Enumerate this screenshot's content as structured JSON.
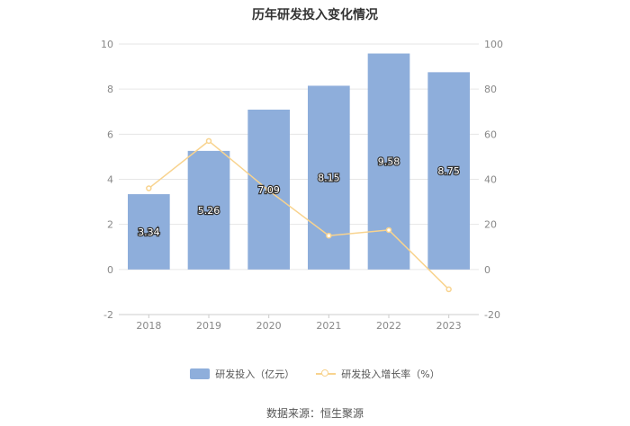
{
  "chart_data": {
    "type": "bar",
    "title": "历年研发投入变化情况",
    "categories": [
      "2018",
      "2019",
      "2020",
      "2021",
      "2022",
      "2023"
    ],
    "series": [
      {
        "name": "研发投入（亿元）",
        "type": "bar",
        "axis": "left",
        "values": [
          3.34,
          5.26,
          7.09,
          8.15,
          9.58,
          8.75
        ],
        "color": "#8eaedb"
      },
      {
        "name": "研发投入增长率（%）",
        "type": "line",
        "axis": "right",
        "values": [
          36.0,
          57.0,
          35.0,
          15.0,
          17.5,
          -8.8
        ],
        "color": "#f8d38e"
      }
    ],
    "left_axis": {
      "min": -2,
      "max": 10,
      "ticks": [
        -2,
        0,
        2,
        4,
        6,
        8,
        10
      ]
    },
    "right_axis": {
      "min": -20,
      "max": 100,
      "ticks": [
        -20,
        0,
        20,
        40,
        60,
        80,
        100
      ]
    },
    "grid": true,
    "legend_position": "bottom"
  },
  "source": "数据来源：恒生聚源"
}
